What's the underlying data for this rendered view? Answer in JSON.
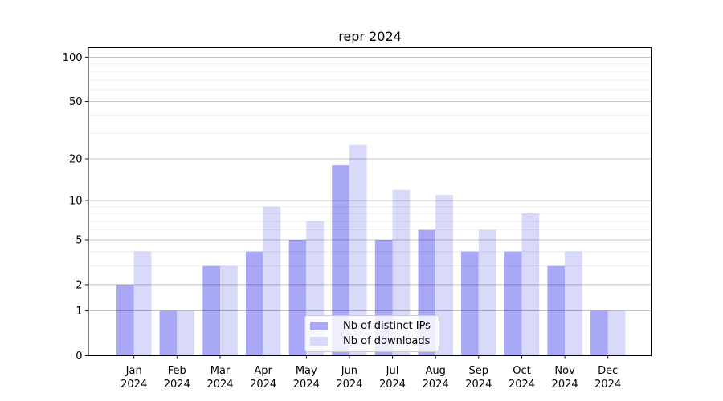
{
  "chart_data": {
    "type": "bar",
    "title": "repr 2024",
    "categories": [
      "Jan",
      "Feb",
      "Mar",
      "Apr",
      "May",
      "Jun",
      "Jul",
      "Aug",
      "Sep",
      "Oct",
      "Nov",
      "Dec"
    ],
    "category_year_line": "2024",
    "series": [
      {
        "name": "Nb of distinct IPs",
        "color": "#a8a8f6",
        "values": [
          2,
          1,
          3,
          4,
          5,
          18,
          5,
          6,
          4,
          4,
          3,
          1
        ]
      },
      {
        "name": "Nb of downloads",
        "color": "#d9d9f9",
        "values": [
          4,
          1,
          3,
          9,
          7,
          25,
          12,
          11,
          6,
          8,
          4,
          1
        ]
      }
    ],
    "y_axis": {
      "scale": "log1p",
      "major_ticks": [
        0,
        1,
        2,
        5,
        10,
        20,
        50,
        100
      ],
      "tick_labels": [
        "0",
        "1",
        "2",
        "5",
        "10",
        "20",
        "50",
        "100"
      ],
      "minor_gridlines": [
        3,
        4,
        6,
        7,
        8,
        9,
        30,
        40,
        60,
        70,
        80,
        90
      ],
      "ylim": [
        0,
        116
      ]
    },
    "xlabel": "",
    "ylabel": "",
    "grid": "on",
    "legend": {
      "position": "lower center"
    },
    "colors": {
      "major_grid": "rgba(0,0,0,0.31)",
      "minor_grid": "rgba(0,0,0,0.08)",
      "spine": "#000000",
      "text": "#000000"
    }
  }
}
